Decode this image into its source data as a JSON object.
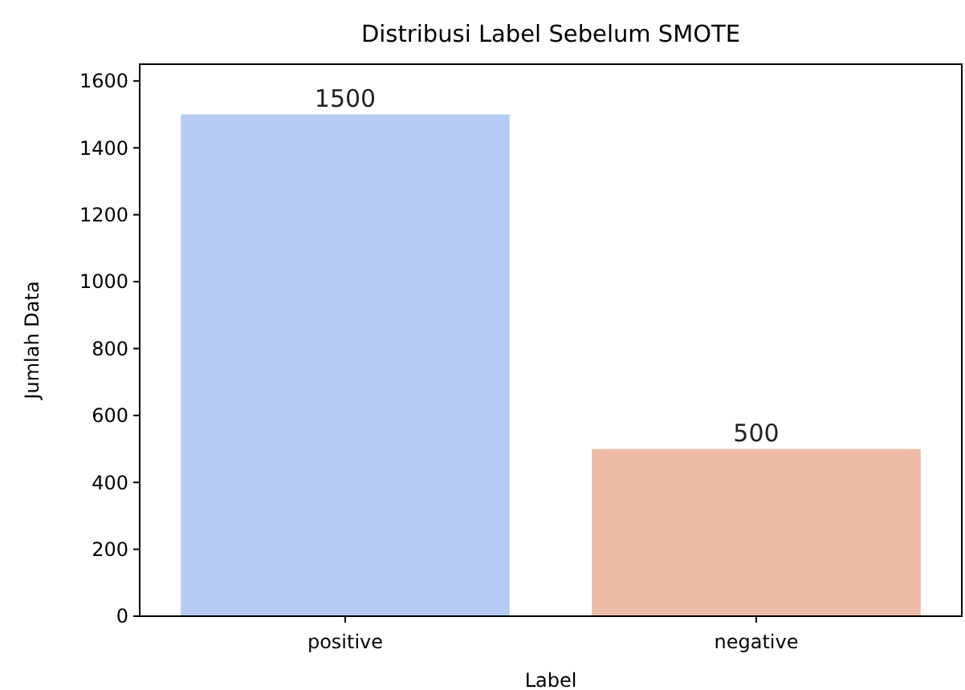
{
  "chart_data": {
    "type": "bar",
    "title": "Distribusi Label Sebelum SMOTE",
    "xlabel": "Label",
    "ylabel": "Jumlah Data",
    "categories": [
      "positive",
      "negative"
    ],
    "values": [
      1500,
      500
    ],
    "colors": [
      "#b5cbf3",
      "#edbca6"
    ],
    "ylim": [
      0,
      1650
    ],
    "yticks": [
      0,
      200,
      400,
      600,
      800,
      1000,
      1200,
      1400,
      1600
    ],
    "data_labels": true
  }
}
